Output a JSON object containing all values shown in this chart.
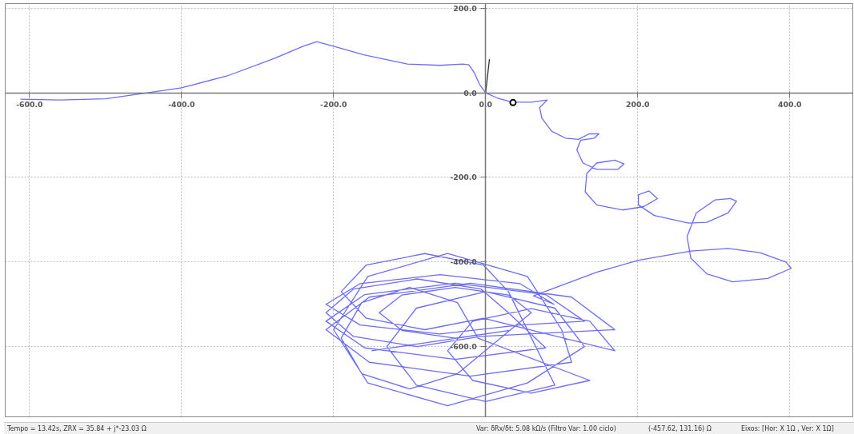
{
  "chart_data": {
    "type": "line",
    "xlim": [
      -632,
      483
    ],
    "ylim": [
      -766,
      211
    ],
    "xticks": [
      {
        "value": -600,
        "label": "-600.0"
      },
      {
        "value": -400,
        "label": "-400.0"
      },
      {
        "value": -200,
        "label": "-200.0"
      },
      {
        "value": 0,
        "label": "0.0"
      },
      {
        "value": 200,
        "label": "200.0"
      },
      {
        "value": 400,
        "label": "400.0"
      }
    ],
    "yticks": [
      {
        "value": 200,
        "label": "200.0"
      },
      {
        "value": 0,
        "label": "0.0"
      },
      {
        "value": -200,
        "label": "-200.0"
      },
      {
        "value": -400,
        "label": "-400.0"
      },
      {
        "value": -600,
        "label": "-600.0"
      }
    ],
    "grid": true,
    "series": [
      {
        "color": "#6b6bff",
        "x": [
          -612,
          -560,
          -500,
          -445,
          -400,
          -340,
          -280,
          -240,
          -222,
          -200,
          -160,
          -103,
          -60,
          -30,
          -22,
          -15,
          -8,
          0,
          15,
          35,
          60,
          81,
          71,
          74,
          87,
          105,
          122,
          136,
          149,
          143,
          125,
          120,
          128,
          146,
          174,
          182,
          170,
          146,
          133,
          131,
          146,
          180,
          208,
          226,
          215,
          201,
          201,
          222,
          267,
          291,
          319,
          330,
          322,
          302,
          277,
          265,
          270,
          291,
          325,
          371,
          402,
          395,
          361,
          319,
          270,
          201,
          146,
          63,
          90,
          45,
          -60,
          -165,
          -210,
          -165,
          -60,
          45,
          130,
          79,
          -40,
          -159,
          -210,
          -159,
          -40,
          79,
          30,
          -6,
          -90,
          -174,
          -210,
          -174,
          -90,
          -6,
          170,
          113,
          -20,
          -153,
          -210,
          -153,
          -20,
          113,
          100,
          55,
          -50,
          -155,
          -200,
          -155,
          -50,
          55,
          130,
          91,
          0,
          -91,
          -130,
          -91,
          0,
          91,
          30,
          -3,
          -80,
          -157,
          -190,
          -157,
          -80,
          -3,
          170,
          137,
          60,
          -17,
          -50,
          -17,
          60,
          137,
          -10,
          -37,
          -100,
          -163,
          -190,
          -163,
          -100,
          -37,
          60,
          30,
          -40,
          -110,
          -140,
          -110,
          -40,
          30,
          -150
        ],
        "values": [
          -15,
          -17,
          -14,
          0,
          12,
          40,
          80,
          110,
          121,
          110,
          90,
          68,
          65,
          68,
          66,
          48,
          20,
          0,
          -12,
          -22,
          -22,
          -17,
          -35,
          -60,
          -91,
          -107,
          -110,
          -97,
          -97,
          -107,
          -112,
          -135,
          -166,
          -181,
          -181,
          -168,
          -159,
          -166,
          -191,
          -234,
          -265,
          -277,
          -269,
          -250,
          -232,
          -241,
          -265,
          -290,
          -308,
          -306,
          -284,
          -256,
          -250,
          -253,
          -284,
          -340,
          -391,
          -428,
          -447,
          -439,
          -415,
          -400,
          -378,
          -368,
          -374,
          -396,
          -424,
          -480,
          -500,
          -451,
          -430,
          -451,
          -500,
          -549,
          -570,
          -549,
          -540,
          -477,
          -450,
          -477,
          -540,
          -603,
          -630,
          -603,
          -520,
          -464,
          -440,
          -464,
          -520,
          -576,
          -600,
          -576,
          -560,
          -483,
          -450,
          -483,
          -560,
          -637,
          -670,
          -637,
          -560,
          -434,
          -380,
          -434,
          -560,
          -686,
          -740,
          -686,
          -600,
          -509,
          -470,
          -509,
          -600,
          -691,
          -730,
          -691,
          -470,
          -407,
          -380,
          -407,
          -470,
          -533,
          -560,
          -533,
          -610,
          -540,
          -510,
          -540,
          -610,
          -680,
          -710,
          -680,
          -580,
          -496,
          -460,
          -496,
          -580,
          -664,
          -700,
          -664,
          -520,
          -478,
          -460,
          -478,
          -520,
          -562,
          -580,
          -562,
          -610
        ]
      },
      {
        "color": "#333333",
        "x": [
          0,
          5
        ],
        "values": [
          0,
          80
        ]
      },
      {
        "type": "scatter",
        "marker": "circle",
        "color": "#000000",
        "x": [
          36
        ],
        "values": [
          -23
        ]
      }
    ],
    "annotations": [
      "Tempo = 13.42s, ZRX = 35.84 + j*-23.03 Ω",
      "Var: δRx/δt:  5.08 kΩ/s (Filtro Var: 1.00 ciclo)",
      "(-457.62, 131.16) Ω",
      "Eixos: [Hor: X 1Ω , Ver: X 1Ω]"
    ]
  }
}
